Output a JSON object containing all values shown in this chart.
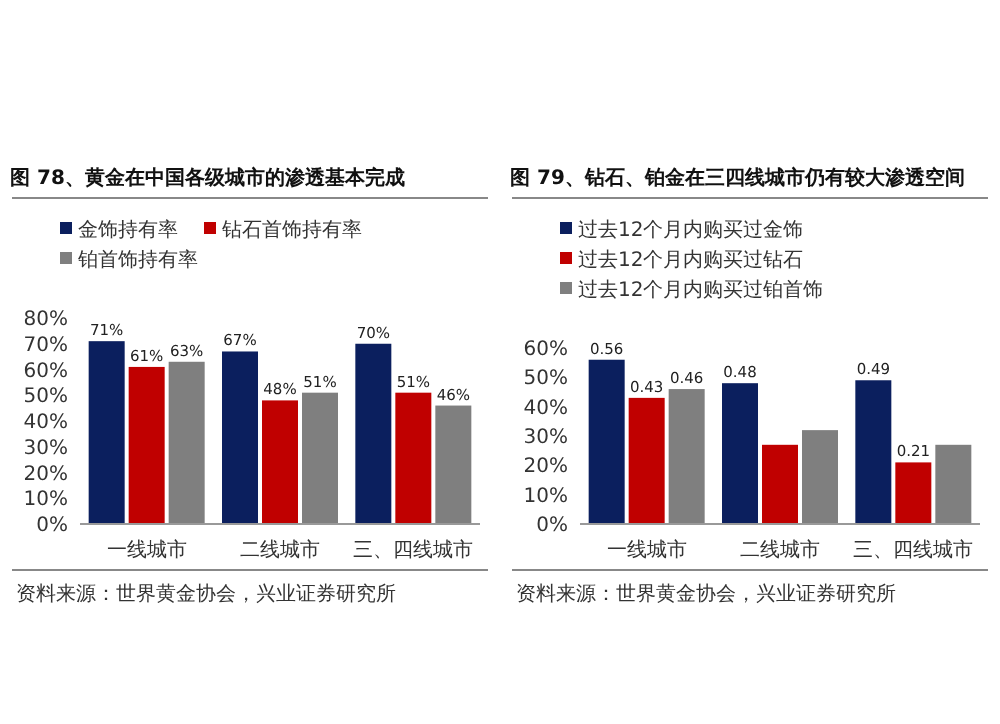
{
  "chart_data": [
    {
      "type": "bar",
      "title": "图 78、黄金在中国各级城市的渗透基本完成",
      "categories": [
        "一线城市",
        "二线城市",
        "三、四线城市"
      ],
      "series": [
        {
          "name": "金饰持有率",
          "color": "#0b1f5e",
          "values": [
            71,
            67,
            70
          ],
          "value_labels": [
            "71%",
            "67%",
            "70%"
          ]
        },
        {
          "name": "钻石首饰持有率",
          "color": "#c00000",
          "values": [
            61,
            48,
            51
          ],
          "value_labels": [
            "61%",
            "48%",
            "51%"
          ]
        },
        {
          "name": "铂首饰持有率",
          "color": "#7f7f7f",
          "values": [
            63,
            51,
            46
          ],
          "value_labels": [
            "63%",
            "51%",
            "46%"
          ]
        }
      ],
      "ylim": [
        0,
        80
      ],
      "yticks": [
        {
          "value": 0,
          "label": "0%"
        },
        {
          "value": 10,
          "label": "10%"
        },
        {
          "value": 20,
          "label": "20%"
        },
        {
          "value": 30,
          "label": "30%"
        },
        {
          "value": 40,
          "label": "40%"
        },
        {
          "value": 50,
          "label": "50%"
        },
        {
          "value": 60,
          "label": "60%"
        },
        {
          "value": 70,
          "label": "70%"
        },
        {
          "value": 80,
          "label": "80%"
        }
      ],
      "legend": "top",
      "annotations": [
        "资料来源：世界黄金协会，兴业证券研究所"
      ]
    },
    {
      "type": "bar",
      "title": "图 79、钻石、铂金在三四线城市仍有较大渗透空间",
      "categories": [
        "一线城市",
        "二线城市",
        "三、四线城市"
      ],
      "series": [
        {
          "name": "过去12个月内购买过金饰",
          "color": "#0b1f5e",
          "values": [
            0.56,
            0.48,
            0.49
          ],
          "value_labels": [
            "0.56",
            "0.48",
            "0.49"
          ]
        },
        {
          "name": "过去12个月内购买过钻石",
          "color": "#c00000",
          "values": [
            0.43,
            0.27,
            0.21
          ],
          "value_labels": [
            "0.43",
            null,
            "0.21"
          ]
        },
        {
          "name": "过去12个月内购买过铂首饰",
          "color": "#7f7f7f",
          "values": [
            0.46,
            0.32,
            0.27
          ],
          "value_labels": [
            "0.46",
            null,
            null
          ]
        }
      ],
      "ylim": [
        0,
        0.6
      ],
      "yticks": [
        {
          "value": 0,
          "label": "0%"
        },
        {
          "value": 0.1,
          "label": "10%"
        },
        {
          "value": 0.2,
          "label": "20%"
        },
        {
          "value": 0.3,
          "label": "30%"
        },
        {
          "value": 0.4,
          "label": "40%"
        },
        {
          "value": 0.5,
          "label": "50%"
        },
        {
          "value": 0.6,
          "label": "60%"
        }
      ],
      "legend": "top",
      "annotations": [
        "资料来源：世界黄金协会，兴业证券研究所"
      ]
    }
  ]
}
